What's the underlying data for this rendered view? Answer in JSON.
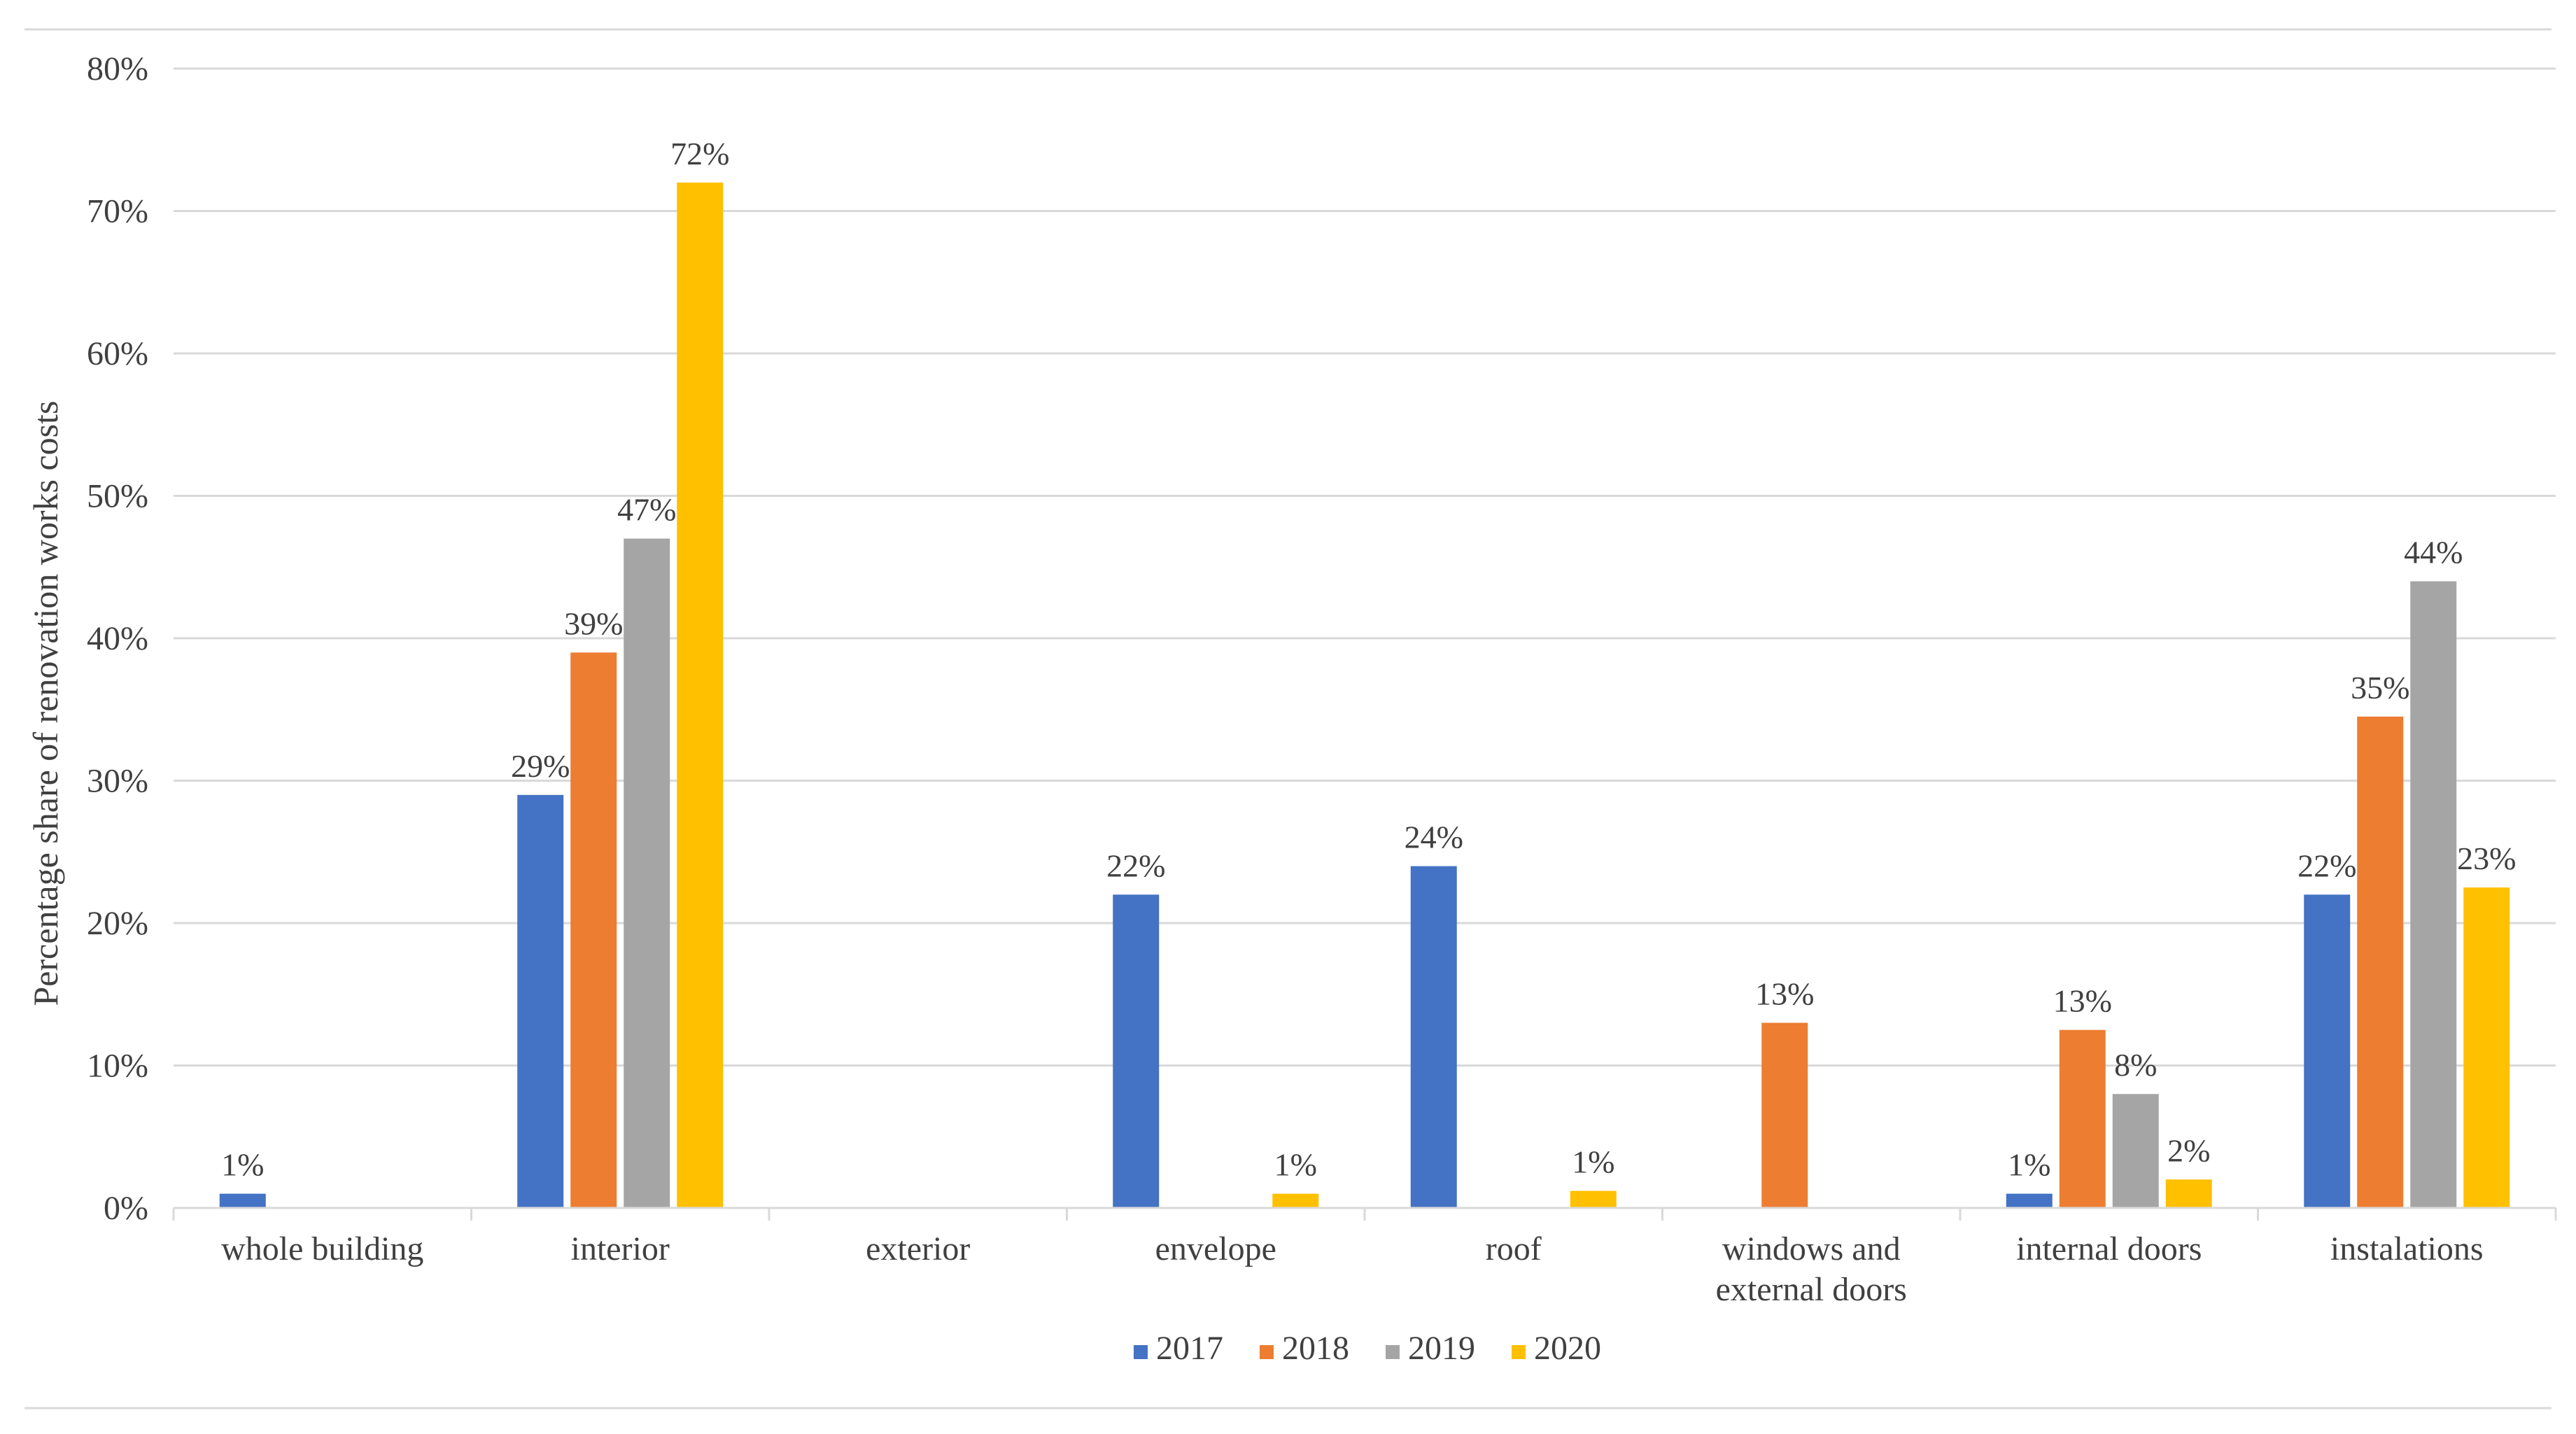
{
  "chart_data": {
    "type": "bar",
    "title": "",
    "xlabel": "",
    "ylabel": "Percentage share of renovation works costs",
    "ylim": [
      0,
      80
    ],
    "yticks": [
      0,
      10,
      20,
      30,
      40,
      50,
      60,
      70,
      80
    ],
    "ytick_labels": [
      "0%",
      "10%",
      "20%",
      "30%",
      "40%",
      "50%",
      "60%",
      "70%",
      "80%"
    ],
    "grid": true,
    "legend_position": "bottom",
    "categories": [
      [
        "whole building"
      ],
      [
        "interior"
      ],
      [
        "exterior"
      ],
      [
        "envelope"
      ],
      [
        "roof"
      ],
      [
        "windows and",
        "external doors"
      ],
      [
        "internal doors"
      ],
      [
        "instalations"
      ]
    ],
    "series": [
      {
        "name": "2017",
        "color": "#4472C4",
        "values": [
          1,
          29,
          null,
          22,
          24,
          null,
          1,
          22
        ],
        "labels": [
          "1%",
          "29%",
          "",
          "22%",
          "24%",
          "",
          "1%",
          "22%"
        ]
      },
      {
        "name": "2018",
        "color": "#ED7D31",
        "values": [
          null,
          39,
          null,
          null,
          null,
          13,
          12.5,
          34.5
        ],
        "labels": [
          "",
          "39%",
          "",
          "",
          "",
          "13%",
          "13%",
          "35%"
        ]
      },
      {
        "name": "2019",
        "color": "#A5A5A5",
        "values": [
          null,
          47,
          null,
          null,
          null,
          null,
          8,
          44
        ],
        "labels": [
          "",
          "47%",
          "",
          "",
          "",
          "",
          "8%",
          "44%"
        ]
      },
      {
        "name": "2020",
        "color": "#FFC000",
        "values": [
          null,
          72,
          null,
          1,
          1.2,
          null,
          2,
          22.5
        ],
        "labels": [
          "",
          "72%",
          "",
          "1%",
          "1%",
          "",
          "2%",
          "23%"
        ]
      }
    ]
  }
}
